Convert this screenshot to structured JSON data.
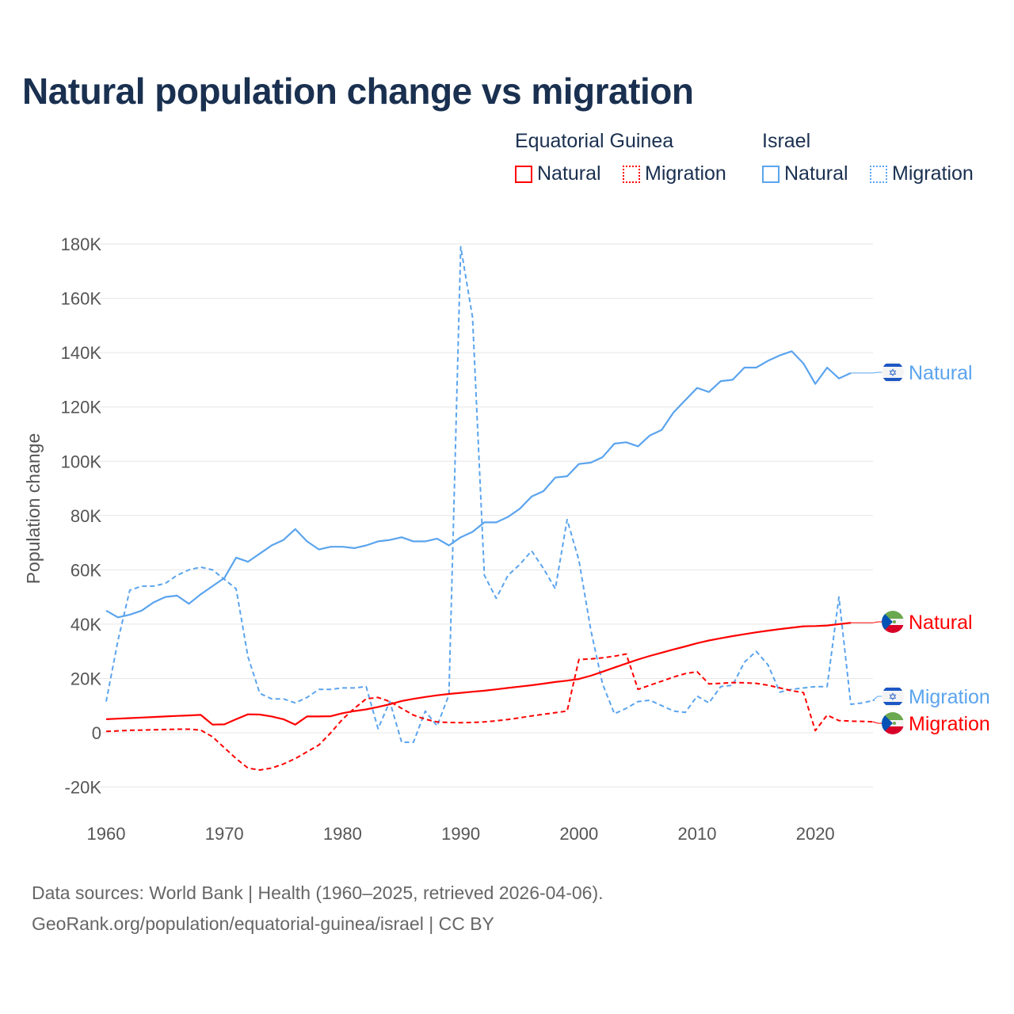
{
  "title": "Natural population change vs migration",
  "legend": {
    "groups": [
      {
        "name": "Equatorial Guinea",
        "color": "#ff0000",
        "items": [
          "Natural",
          "Migration"
        ]
      },
      {
        "name": "Israel",
        "color": "#5ba4ee",
        "items": [
          "Natural",
          "Migration"
        ]
      }
    ]
  },
  "footer": {
    "line1": "Data sources: World Bank | Health (1960–2025, retrieved 2026-04-06).",
    "line2": "GeoRank.org/population/equatorial-guinea/israel | CC BY"
  },
  "chart_data": {
    "type": "line",
    "title": "Natural population change vs migration",
    "xlabel": "",
    "ylabel": "Population change",
    "xlim": [
      1960,
      2025
    ],
    "ylim": [
      -20000,
      180000
    ],
    "xticks": [
      "1960",
      "1970",
      "1980",
      "1990",
      "2000",
      "2010",
      "2020"
    ],
    "yticks": [
      "-20K",
      "0",
      "20K",
      "40K",
      "60K",
      "80K",
      "100K",
      "120K",
      "140K",
      "160K",
      "180K"
    ],
    "grid": true,
    "series": [
      {
        "name": "Israel Natural",
        "label": "Natural",
        "country": "Israel",
        "color": "#5ba4ee",
        "dash": false,
        "start": 1960,
        "values": [
          45000,
          42500,
          43500,
          45000,
          48000,
          50000,
          50500,
          47500,
          51000,
          54000,
          57000,
          64500,
          63000,
          66000,
          69000,
          71000,
          75000,
          70500,
          67500,
          68500,
          68500,
          68000,
          69000,
          70500,
          71000,
          72000,
          70500,
          70500,
          71500,
          69000,
          72000,
          74000,
          77500,
          77500,
          79500,
          82500,
          87000,
          89000,
          94000,
          94500,
          99000,
          99500,
          101500,
          106500,
          107000,
          105500,
          109500,
          111500,
          118000,
          122500,
          127000,
          125500,
          129500,
          130000,
          134500,
          134500,
          137000,
          139000,
          140500,
          136000,
          128500,
          134500,
          130500,
          132500
        ]
      },
      {
        "name": "Israel Migration",
        "label": "Migration",
        "country": "Israel",
        "color": "#5ba4ee",
        "dash": true,
        "start": 1960,
        "values": [
          11500,
          34000,
          52500,
          54000,
          54000,
          55000,
          58000,
          60000,
          61000,
          60000,
          56500,
          53000,
          28000,
          14500,
          12500,
          12500,
          11000,
          13000,
          16000,
          16000,
          16500,
          16500,
          17000,
          1500,
          11500,
          -3500,
          -3500,
          8000,
          2500,
          14000,
          179000,
          153000,
          58000,
          49500,
          58000,
          62000,
          67000,
          60500,
          53000,
          78500,
          63500,
          38000,
          18000,
          7000,
          9000,
          11500,
          12000,
          10000,
          8000,
          7500,
          13500,
          11000,
          17000,
          17500,
          26000,
          30000,
          25000,
          15000,
          16000,
          16500,
          17000,
          17000,
          50000,
          10500,
          11000,
          12000
        ]
      },
      {
        "name": "Equatorial Guinea Natural",
        "label": "Natural",
        "country": "Equatorial Guinea",
        "color": "#ff0000",
        "dash": false,
        "start": 1960,
        "values": [
          5000,
          5200,
          5400,
          5600,
          5800,
          6000,
          6200,
          6400,
          6600,
          3000,
          3100,
          5000,
          6800,
          6700,
          6000,
          5000,
          3000,
          6000,
          6000,
          6100,
          7200,
          8000,
          8600,
          9500,
          10500,
          11700,
          12500,
          13200,
          13800,
          14300,
          14700,
          15100,
          15500,
          16000,
          16500,
          17000,
          17500,
          18100,
          18700,
          19200,
          19800,
          21000,
          22500,
          24000,
          25500,
          27000,
          28300,
          29500,
          30700,
          31800,
          33000,
          34000,
          34800,
          35600,
          36300,
          37000,
          37600,
          38200,
          38700,
          39200,
          39300,
          39500,
          40000,
          40500
        ]
      },
      {
        "name": "Equatorial Guinea Migration",
        "label": "Migration",
        "country": "Equatorial Guinea",
        "color": "#ff0000",
        "dash": true,
        "start": 1960,
        "values": [
          500,
          700,
          900,
          1000,
          1100,
          1200,
          1300,
          1300,
          1000,
          -1500,
          -5500,
          -9500,
          -13000,
          -13700,
          -13000,
          -11500,
          -9500,
          -7000,
          -4500,
          0,
          5000,
          9000,
          12500,
          13000,
          11500,
          9000,
          6500,
          5000,
          4000,
          3800,
          3700,
          3800,
          4000,
          4400,
          4900,
          5500,
          6200,
          6800,
          7400,
          8000,
          27000,
          27200,
          27600,
          28200,
          29000,
          16000,
          17500,
          19000,
          20500,
          21800,
          22500,
          18000,
          18200,
          18500,
          18400,
          18200,
          17500,
          16500,
          15500,
          14800,
          800,
          6500,
          4500,
          4300,
          4200,
          4000
        ]
      }
    ]
  }
}
